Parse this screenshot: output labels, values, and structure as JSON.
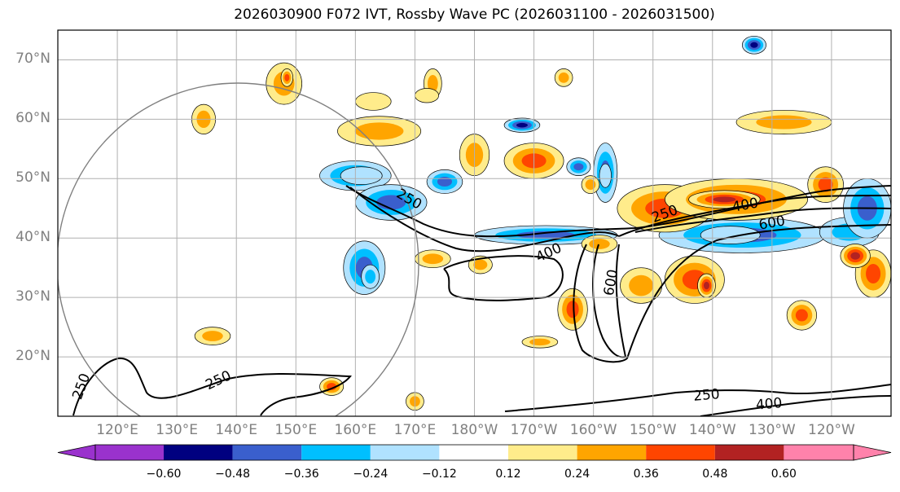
{
  "title": "2026030900 F072 IVT, Rossby Wave PC (2026031100 - 2026031500)",
  "lat_labels": [
    {
      "text": "70°N",
      "lat": 70
    },
    {
      "text": "60°N",
      "lat": 60
    },
    {
      "text": "50°N",
      "lat": 50
    },
    {
      "text": "40°N",
      "lat": 40
    },
    {
      "text": "30°N",
      "lat": 30
    },
    {
      "text": "20°N",
      "lat": 20
    }
  ],
  "lon_labels": [
    {
      "text": "120°E",
      "lon": 120
    },
    {
      "text": "130°E",
      "lon": 130
    },
    {
      "text": "140°E",
      "lon": 140
    },
    {
      "text": "150°E",
      "lon": 150
    },
    {
      "text": "160°E",
      "lon": 160
    },
    {
      "text": "170°E",
      "lon": 170
    },
    {
      "text": "180°W",
      "lon": 180
    },
    {
      "text": "170°W",
      "lon": 190
    },
    {
      "text": "160°W",
      "lon": 200
    },
    {
      "text": "150°W",
      "lon": 210
    },
    {
      "text": "140°W",
      "lon": 220
    },
    {
      "text": "130°W",
      "lon": 230
    },
    {
      "text": "120°W",
      "lon": 240
    }
  ],
  "map_extent": {
    "lon_min": 110,
    "lon_max": 250,
    "lat_min": 10,
    "lat_max": 75
  },
  "contour_labels": [
    {
      "text": "250",
      "lon": 169,
      "lat": 46.5,
      "angle": 30
    },
    {
      "text": "400",
      "lon": 192.5,
      "lat": 37.5,
      "angle": -25
    },
    {
      "text": "600",
      "lon": 203,
      "lat": 32.5,
      "angle": -80
    },
    {
      "text": "250",
      "lon": 212,
      "lat": 44,
      "angle": -20
    },
    {
      "text": "400",
      "lon": 225.5,
      "lat": 45.5,
      "angle": -10
    },
    {
      "text": "600",
      "lon": 230,
      "lat": 42.5,
      "angle": -10
    },
    {
      "text": "250",
      "lon": 137,
      "lat": 16,
      "angle": -25
    },
    {
      "text": "250",
      "lon": 114,
      "lat": 15,
      "angle": -70
    },
    {
      "text": "250",
      "lon": 219,
      "lat": 13.5,
      "angle": -5
    },
    {
      "text": "400",
      "lon": 229.5,
      "lat": 12,
      "angle": -5
    }
  ],
  "colorbar": {
    "colors": [
      "#9a32cd",
      "#000080",
      "#3a5fcd",
      "#00bfff",
      "#b0e2ff",
      "#ffffff",
      "#ffec8b",
      "#ffa500",
      "#ff4500",
      "#b22222",
      "#ff82ab"
    ],
    "ticks": [
      "−0.60",
      "−0.48",
      "−0.36",
      "−0.24",
      "−0.12",
      "0.12",
      "0.24",
      "0.36",
      "0.48",
      "0.60"
    ]
  },
  "blobs": [
    {
      "lon": 160,
      "lat": 50.5,
      "rx": 6,
      "ry": 2.5,
      "level": -3
    },
    {
      "lon": 161,
      "lat": 50.5,
      "rx": 3.5,
      "ry": 1.5,
      "level": -1
    },
    {
      "lon": 166,
      "lat": 46,
      "rx": 6,
      "ry": 3,
      "level": -3
    },
    {
      "lon": 161.5,
      "lat": 35,
      "rx": 3.5,
      "ry": 4.5,
      "level": -3
    },
    {
      "lon": 162.5,
      "lat": 33.5,
      "rx": 1.5,
      "ry": 2,
      "level": -2
    },
    {
      "lon": 192,
      "lat": 40.5,
      "rx": 12,
      "ry": 1.6,
      "level": -3
    },
    {
      "lon": 202,
      "lat": 51,
      "rx": 2,
      "ry": 5,
      "level": -3
    },
    {
      "lon": 202,
      "lat": 50.5,
      "rx": 1,
      "ry": 2,
      "level": -1
    },
    {
      "lon": 225,
      "lat": 40.5,
      "rx": 14,
      "ry": 3,
      "level": -3
    },
    {
      "lon": 223,
      "lat": 40.5,
      "rx": 5,
      "ry": 1.5,
      "level": -1
    },
    {
      "lon": 243,
      "lat": 41,
      "rx": 5,
      "ry": 2.5,
      "level": -2
    },
    {
      "lon": 246,
      "lat": 45,
      "rx": 4,
      "ry": 5,
      "level": -3
    },
    {
      "lon": 175,
      "lat": 49.5,
      "rx": 3,
      "ry": 2,
      "level": -3
    },
    {
      "lon": 197.5,
      "lat": 52,
      "rx": 2,
      "ry": 1.5,
      "level": -3
    },
    {
      "lon": 188,
      "lat": 59,
      "rx": 3,
      "ry": 1.2,
      "level": -4
    },
    {
      "lon": 227,
      "lat": 72.5,
      "rx": 2,
      "ry": 1.5,
      "level": -4
    },
    {
      "lon": 212,
      "lat": 45,
      "rx": 8,
      "ry": 4,
      "level": 3
    },
    {
      "lon": 224,
      "lat": 46.5,
      "rx": 12,
      "ry": 3.5,
      "level": 3
    },
    {
      "lon": 222,
      "lat": 46.5,
      "rx": 6,
      "ry": 1.5,
      "level": 4
    },
    {
      "lon": 239,
      "lat": 49,
      "rx": 3,
      "ry": 3,
      "level": 3
    },
    {
      "lon": 232,
      "lat": 59.5,
      "rx": 8,
      "ry": 2,
      "level": 2
    },
    {
      "lon": 190,
      "lat": 53,
      "rx": 5,
      "ry": 3,
      "level": 3
    },
    {
      "lon": 180,
      "lat": 54,
      "rx": 2.5,
      "ry": 3.5,
      "level": 2
    },
    {
      "lon": 217,
      "lat": 33,
      "rx": 5,
      "ry": 4,
      "level": 3
    },
    {
      "lon": 219,
      "lat": 32,
      "rx": 1.5,
      "ry": 2,
      "level": 4
    },
    {
      "lon": 208,
      "lat": 32,
      "rx": 3.5,
      "ry": 3,
      "level": 2
    },
    {
      "lon": 196.5,
      "lat": 28,
      "rx": 2.5,
      "ry": 3.5,
      "level": 3
    },
    {
      "lon": 235,
      "lat": 27,
      "rx": 2.5,
      "ry": 2.5,
      "level": 3
    },
    {
      "lon": 247,
      "lat": 34,
      "rx": 3,
      "ry": 4,
      "level": 3
    },
    {
      "lon": 134.5,
      "lat": 60,
      "rx": 2,
      "ry": 2.5,
      "level": 2
    },
    {
      "lon": 148,
      "lat": 66,
      "rx": 3,
      "ry": 3.5,
      "level": 2
    },
    {
      "lon": 148.5,
      "lat": 67,
      "rx": 1,
      "ry": 1.5,
      "level": 3
    },
    {
      "lon": 164,
      "lat": 58,
      "rx": 7,
      "ry": 2.5,
      "level": 2
    },
    {
      "lon": 173,
      "lat": 66,
      "rx": 1.5,
      "ry": 2.5,
      "level": 2
    },
    {
      "lon": 195,
      "lat": 67,
      "rx": 1.5,
      "ry": 1.5,
      "level": 2
    },
    {
      "lon": 199.5,
      "lat": 49,
      "rx": 1.5,
      "ry": 1.5,
      "level": 2
    },
    {
      "lon": 191,
      "lat": 22.5,
      "rx": 3,
      "ry": 1,
      "level": 2
    },
    {
      "lon": 136,
      "lat": 23.5,
      "rx": 3,
      "ry": 1.5,
      "level": 2
    },
    {
      "lon": 173,
      "lat": 36.5,
      "rx": 3,
      "ry": 1.5,
      "level": 2
    },
    {
      "lon": 181,
      "lat": 35.5,
      "rx": 2,
      "ry": 1.5,
      "level": 2
    },
    {
      "lon": 156,
      "lat": 15,
      "rx": 2,
      "ry": 1.5,
      "level": 3
    },
    {
      "lon": 170,
      "lat": 12.5,
      "rx": 1.5,
      "ry": 1.5,
      "level": 2
    },
    {
      "lon": 201,
      "lat": 39,
      "rx": 3,
      "ry": 1.5,
      "level": 2
    },
    {
      "lon": 244,
      "lat": 37,
      "rx": 2.5,
      "ry": 2,
      "level": 4
    },
    {
      "lon": 172,
      "lat": 64,
      "rx": 2,
      "ry": 1.2,
      "level": 1
    },
    {
      "lon": 163,
      "lat": 63,
      "rx": 3,
      "ry": 1.5,
      "level": 1
    }
  ]
}
